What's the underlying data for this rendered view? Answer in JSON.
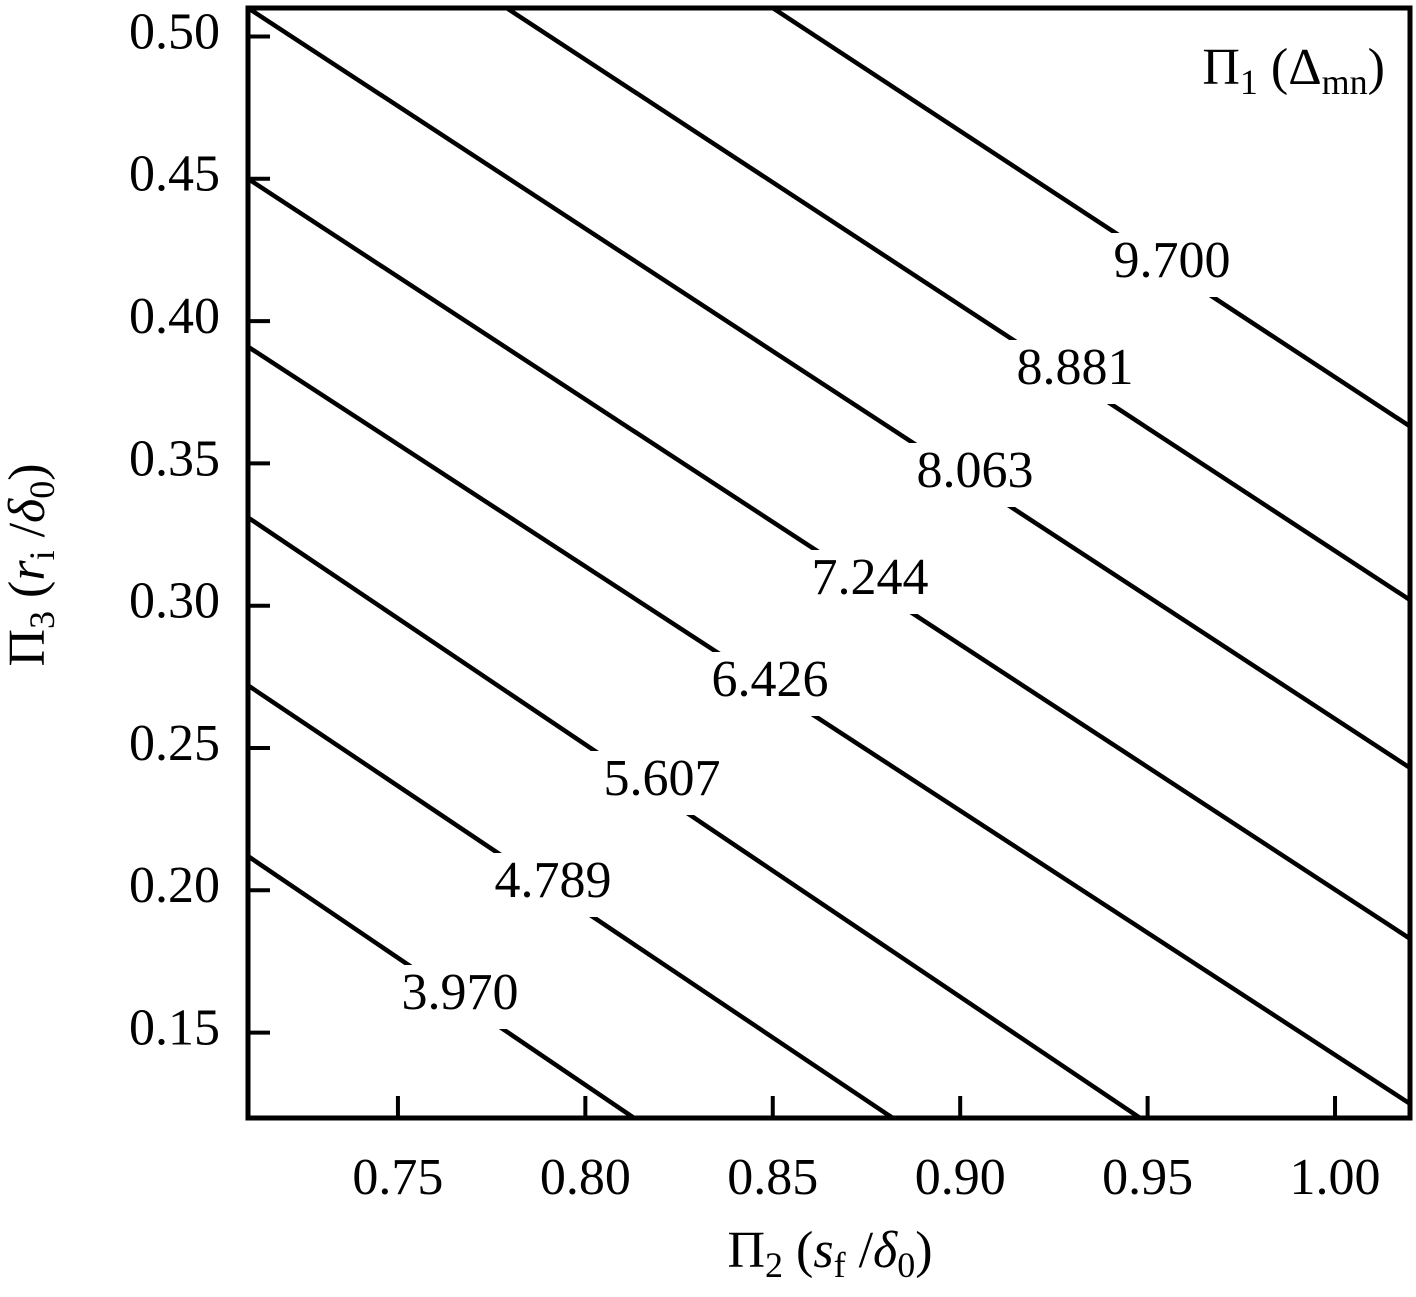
{
  "chart_data": {
    "type": "contour",
    "annotation": [
      "Π",
      "1",
      " (Δ",
      "mn",
      ")"
    ],
    "x_label": [
      "Π",
      "2",
      " (",
      "s",
      "f",
      " /",
      "δ",
      "0",
      ")"
    ],
    "y_label": [
      "Π",
      "3",
      " (",
      "r",
      "i",
      " /",
      "δ",
      "0",
      ")"
    ],
    "xlim": [
      0.71,
      1.02
    ],
    "ylim": [
      0.12,
      0.51
    ],
    "xticks": [
      0.75,
      {
        "value": 0.8,
        "label": "0.80"
      },
      0.85,
      {
        "value": 0.9,
        "label": "0.90"
      },
      0.95,
      {
        "value": 1.0,
        "label": "1.00"
      }
    ],
    "yticks": [
      0.15,
      {
        "value": 0.2,
        "label": "0.20"
      },
      0.25,
      {
        "value": 0.3,
        "label": "0.30"
      },
      0.35,
      {
        "value": 0.4,
        "label": "0.40"
      },
      0.45,
      {
        "value": 0.5,
        "label": "0.50"
      }
    ],
    "color": "#000000",
    "values": [
      3.97,
      4.789,
      5.607,
      6.426,
      7.244,
      8.063,
      8.881,
      9.7
    ],
    "value_labels": [
      "3.970",
      "4.789",
      "5.607",
      "6.426",
      "7.244",
      "8.063",
      "8.881",
      "9.700"
    ],
    "lines": [
      {
        "x": [
          0.71,
          0.813
        ],
        "y": [
          0.212,
          0.12
        ]
      },
      {
        "x": [
          0.71,
          0.882
        ],
        "y": [
          0.272,
          0.12
        ]
      },
      {
        "x": [
          0.71,
          0.948
        ],
        "y": [
          0.331,
          0.12
        ]
      },
      {
        "x": [
          0.71,
          1.02
        ],
        "y": [
          0.391,
          0.125
        ]
      },
      {
        "x": [
          0.71,
          1.02
        ],
        "y": [
          0.45,
          0.183
        ]
      },
      {
        "x": [
          0.71,
          1.02
        ],
        "y": [
          0.51,
          0.243
        ]
      },
      {
        "x": [
          0.779,
          1.02
        ],
        "y": [
          0.51,
          0.302
        ]
      },
      {
        "x": [
          0.85,
          1.02
        ],
        "y": [
          0.51,
          0.363
        ]
      }
    ]
  }
}
